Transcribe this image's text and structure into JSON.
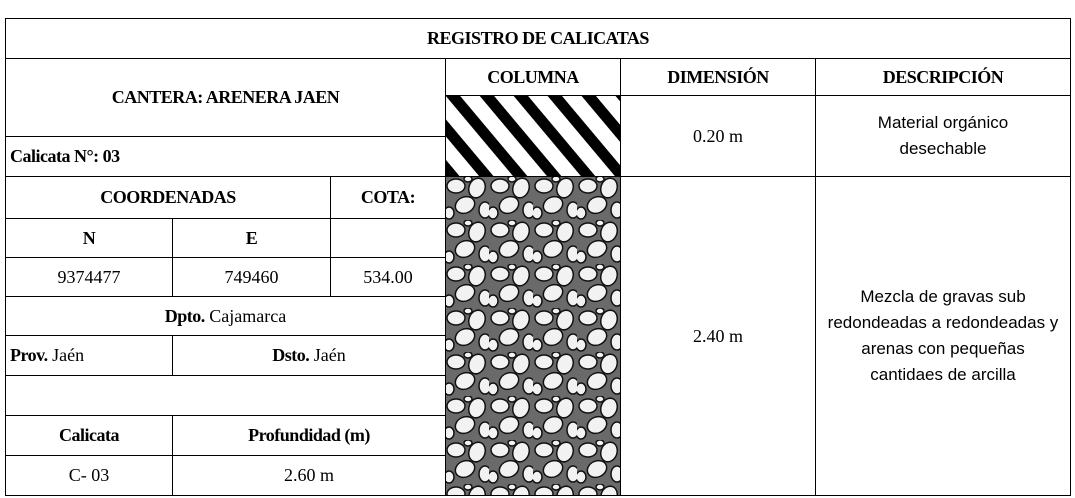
{
  "title": "REGISTRO DE CALICATAS",
  "cantera": "CANTERA: ARENERA JAEN",
  "calicata_numero": "Calicata N°: 03",
  "headers": [
    "COLUMNA",
    "DIMENSIÓN",
    "DESCRIPCIÓN"
  ],
  "layers": [
    {
      "dimension": "0.20 m",
      "description": "Material orgánico desechable"
    },
    {
      "dimension": "2.40 m",
      "description": "Mezcla de gravas  sub redondeadas a redondeadas y arenas con pequeñas cantidaes de arcilla"
    }
  ],
  "coordinates": {
    "label": "COORDENADAS",
    "cota_label": "COTA:",
    "n_label": "N",
    "e_label": "E",
    "n": "9374477",
    "e": "749460",
    "cota": "534.00"
  },
  "location": {
    "dpto_label": "Dpto.",
    "dpto": "Cajamarca",
    "prov_label": "Prov.",
    "prov": "Jaén",
    "dsto_label": "Dsto.",
    "dsto": "Jaén"
  },
  "summary": {
    "headers": [
      "Calicata",
      "Profundidad (m)"
    ],
    "calicata": "C- 03",
    "profundidad": "2.60 m"
  }
}
